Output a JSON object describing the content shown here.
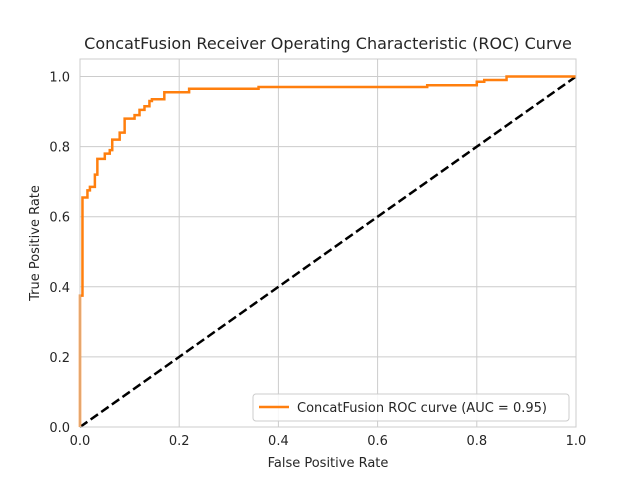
{
  "chart_data": {
    "type": "line",
    "title": "ConcatFusion Receiver Operating Characteristic (ROC) Curve",
    "xlabel": "False Positive Rate",
    "ylabel": "True Positive Rate",
    "xlim": [
      0.0,
      1.0
    ],
    "ylim": [
      0.0,
      1.05
    ],
    "xticks": [
      "0.0",
      "0.2",
      "0.4",
      "0.6",
      "0.8",
      "1.0"
    ],
    "yticks": [
      "0.0",
      "0.2",
      "0.4",
      "0.6",
      "0.8",
      "1.0"
    ],
    "grid": true,
    "legend_position": "lower-right",
    "colors": {
      "roc": "#ff7f0e",
      "diagonal": "#000000",
      "grid": "#cccccc"
    },
    "series": [
      {
        "name": "ConcatFusion ROC curve (AUC = 0.95)",
        "style": "solid",
        "points": [
          [
            0.0,
            0.0
          ],
          [
            0.0,
            0.375
          ],
          [
            0.005,
            0.375
          ],
          [
            0.005,
            0.655
          ],
          [
            0.015,
            0.655
          ],
          [
            0.015,
            0.675
          ],
          [
            0.02,
            0.675
          ],
          [
            0.02,
            0.685
          ],
          [
            0.03,
            0.685
          ],
          [
            0.03,
            0.72
          ],
          [
            0.035,
            0.72
          ],
          [
            0.035,
            0.765
          ],
          [
            0.05,
            0.765
          ],
          [
            0.05,
            0.78
          ],
          [
            0.06,
            0.78
          ],
          [
            0.06,
            0.79
          ],
          [
            0.065,
            0.79
          ],
          [
            0.065,
            0.82
          ],
          [
            0.08,
            0.82
          ],
          [
            0.08,
            0.84
          ],
          [
            0.09,
            0.84
          ],
          [
            0.09,
            0.88
          ],
          [
            0.11,
            0.88
          ],
          [
            0.11,
            0.89
          ],
          [
            0.12,
            0.89
          ],
          [
            0.12,
            0.905
          ],
          [
            0.13,
            0.905
          ],
          [
            0.13,
            0.915
          ],
          [
            0.14,
            0.915
          ],
          [
            0.14,
            0.93
          ],
          [
            0.145,
            0.93
          ],
          [
            0.145,
            0.935
          ],
          [
            0.17,
            0.935
          ],
          [
            0.17,
            0.955
          ],
          [
            0.22,
            0.955
          ],
          [
            0.22,
            0.965
          ],
          [
            0.36,
            0.965
          ],
          [
            0.36,
            0.97
          ],
          [
            0.7,
            0.97
          ],
          [
            0.7,
            0.975
          ],
          [
            0.8,
            0.975
          ],
          [
            0.8,
            0.985
          ],
          [
            0.815,
            0.985
          ],
          [
            0.815,
            0.99
          ],
          [
            0.86,
            0.99
          ],
          [
            0.86,
            1.0
          ],
          [
            1.0,
            1.0
          ]
        ]
      },
      {
        "name": "",
        "style": "dashed",
        "points": [
          [
            0.0,
            0.0
          ],
          [
            1.0,
            1.0
          ]
        ]
      }
    ]
  }
}
